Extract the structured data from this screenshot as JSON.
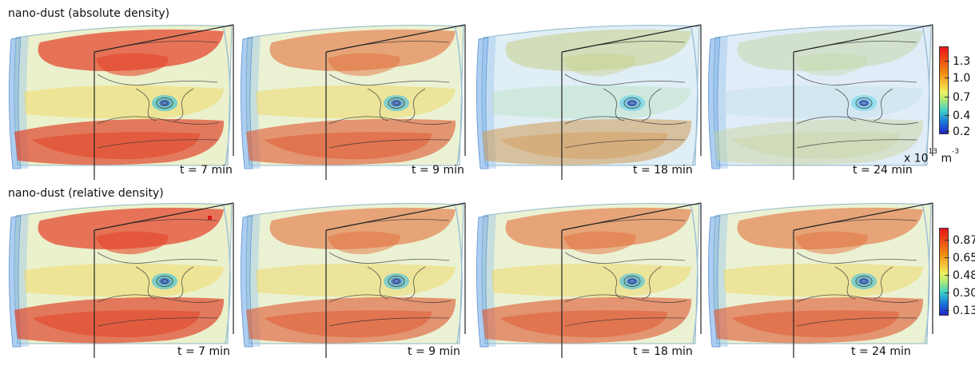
{
  "rows": [
    {
      "title": "nano-dust (absolute density)",
      "panels": [
        {
          "time": "t = 7 min",
          "state": "early"
        },
        {
          "time": "t = 9 min",
          "state": "mid"
        },
        {
          "time": "t = 18 min",
          "state": "late"
        },
        {
          "time": "t = 24 min",
          "state": "final"
        }
      ],
      "colorbar": {
        "ticks": [
          "1.3",
          "1.0",
          "0.7",
          "0.4",
          "0.2"
        ],
        "unit_base": "x 10",
        "unit_exp": "13",
        "unit_tail": " m",
        "unit_tail_exp": "-3"
      }
    },
    {
      "title": "nano-dust (relative density)",
      "panels": [
        {
          "time": "t =  7 min",
          "state": "early"
        },
        {
          "time": "t =  9 min",
          "state": "mid"
        },
        {
          "time": "t =  18 min",
          "state": "mid"
        },
        {
          "time": "t =  24 min",
          "state": "mid"
        }
      ],
      "colorbar": {
        "ticks": [
          "0.87",
          "0.65",
          "0.48",
          "0.30",
          "0.13"
        ]
      }
    }
  ]
}
